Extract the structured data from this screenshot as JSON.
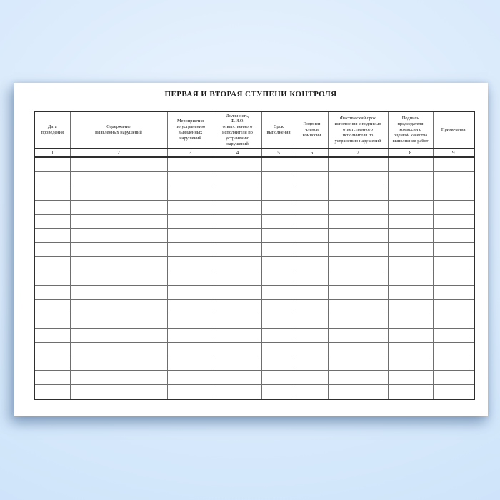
{
  "page": {
    "title": "ПЕРВАЯ И ВТОРАЯ СТУПЕНИ КОНТРОЛЯ"
  },
  "table": {
    "columns": [
      {
        "number": "1",
        "label": "Дата\nпроведения"
      },
      {
        "number": "2",
        "label": "Содержание\nвыявленных нарушений"
      },
      {
        "number": "3",
        "label": "Мероприятия\nпо устранению\nвыявленных\nнарушений"
      },
      {
        "number": "4",
        "label": "Должность,\nФ.И.О.\nответственного\nисполнителя по\nустранению\nнарушений"
      },
      {
        "number": "5",
        "label": "Срок\nвыполнения"
      },
      {
        "number": "6",
        "label": "Подписи\nчленов\nкомиссии"
      },
      {
        "number": "7",
        "label": "Фактический срок\nисполнения с подписью\nответственного\nисполнителя по\nустранению нарушений"
      },
      {
        "number": "8",
        "label": "Подпись\nпредседателя\nкомиссии с\nоценкой качества\nвыполнения работ"
      },
      {
        "number": "9",
        "label": "Примечания"
      }
    ],
    "empty_row_count": 17
  },
  "colors": {
    "background_blue": "#d3e7fb",
    "paper": "#ffffff",
    "outer_border": "#2e2e2e",
    "inner_border": "#6e6e6e",
    "text": "#151515"
  }
}
